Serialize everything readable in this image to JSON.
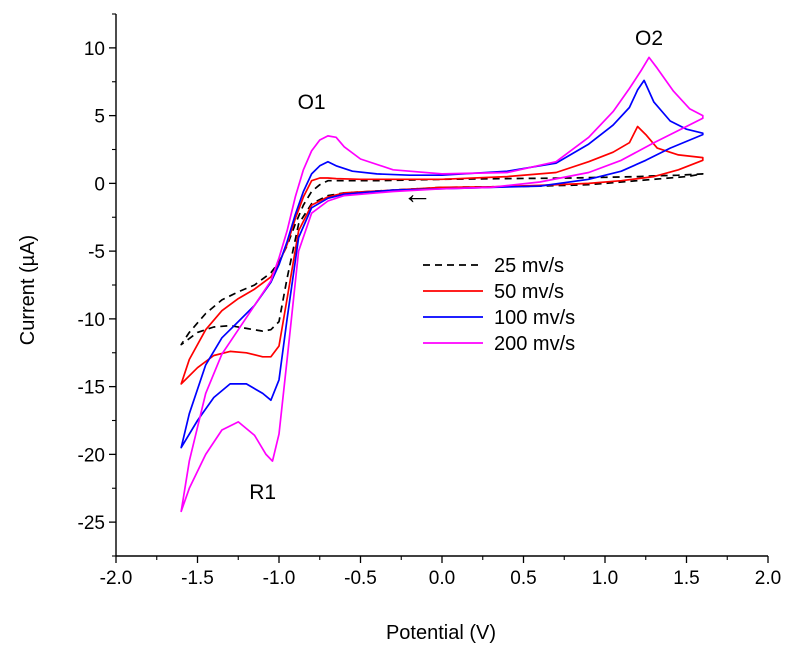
{
  "chart_data": {
    "type": "line",
    "title": "",
    "xlabel": "Potential (V)",
    "ylabel": "Current (µA)",
    "xlim": [
      -2.0,
      2.0
    ],
    "ylim": [
      -27.5,
      12.5
    ],
    "x_ticks": [
      -2.0,
      -1.5,
      -1.0,
      -0.5,
      0.0,
      0.5,
      1.0,
      1.5,
      2.0
    ],
    "x_tick_labels": [
      "-2.0",
      "-1.5",
      "-1.0",
      "-0.5",
      "0.0",
      "0.5",
      "1.0",
      "1.5",
      "2.0"
    ],
    "y_ticks": [
      -25,
      -20,
      -15,
      -10,
      -5,
      0,
      5,
      10
    ],
    "y_tick_labels": [
      "-25",
      "-20",
      "-15",
      "-10",
      "-5",
      "0",
      "5",
      "10"
    ],
    "grid": false,
    "legend_position": "center-right",
    "annotations": [
      {
        "text": "O1",
        "x": -0.8,
        "y": 5.5
      },
      {
        "text": "O2",
        "x": 1.27,
        "y": 10.2
      },
      {
        "text": "R1",
        "x": -1.1,
        "y": -23.3
      },
      {
        "text": "←",
        "x": -0.15,
        "y": -1.5
      }
    ],
    "series": [
      {
        "name": "25 mv/s",
        "color": "#000000",
        "dash": "7,5",
        "x": [
          0.0,
          -0.3,
          -0.6,
          -0.7,
          -0.8,
          -0.88,
          -0.95,
          -1.0,
          -1.05,
          -1.1,
          -1.2,
          -1.3,
          -1.4,
          -1.5,
          -1.6,
          -1.55,
          -1.45,
          -1.35,
          -1.25,
          -1.15,
          -1.05,
          -1.0,
          -0.95,
          -0.9,
          -0.85,
          -0.8,
          -0.75,
          -0.7,
          -0.6,
          -0.4,
          -0.2,
          0.0,
          0.4,
          0.8,
          1.0,
          1.2,
          1.3,
          1.45,
          1.6,
          1.5,
          1.3,
          1.1,
          0.9,
          0.6,
          0.3,
          0.0
        ],
        "y": [
          -0.3,
          -0.5,
          -0.7,
          -0.9,
          -1.5,
          -3.0,
          -7.0,
          -10.2,
          -10.8,
          -10.9,
          -10.7,
          -10.5,
          -10.6,
          -11.0,
          -11.9,
          -11.0,
          -9.6,
          -8.6,
          -8.0,
          -7.5,
          -6.6,
          -5.8,
          -4.6,
          -3.0,
          -1.6,
          -0.6,
          -0.1,
          0.2,
          0.2,
          0.2,
          0.25,
          0.3,
          0.35,
          0.4,
          0.45,
          0.5,
          0.55,
          0.6,
          0.7,
          0.5,
          0.3,
          0.1,
          -0.1,
          -0.2,
          -0.25,
          -0.3
        ]
      },
      {
        "name": "50 mv/s",
        "color": "#ff0000",
        "dash": "",
        "x": [
          0.0,
          -0.3,
          -0.6,
          -0.7,
          -0.8,
          -0.88,
          -0.95,
          -1.0,
          -1.05,
          -1.1,
          -1.2,
          -1.3,
          -1.4,
          -1.5,
          -1.6,
          -1.55,
          -1.45,
          -1.35,
          -1.25,
          -1.15,
          -1.05,
          -1.0,
          -0.95,
          -0.9,
          -0.85,
          -0.8,
          -0.75,
          -0.7,
          -0.65,
          -0.5,
          -0.2,
          0.0,
          0.4,
          0.7,
          0.9,
          1.05,
          1.15,
          1.2,
          1.25,
          1.32,
          1.45,
          1.6,
          1.6,
          1.45,
          1.3,
          1.1,
          0.9,
          0.6,
          0.3,
          0.0
        ],
        "y": [
          -0.3,
          -0.5,
          -0.7,
          -1.0,
          -1.6,
          -3.5,
          -8.5,
          -12.0,
          -12.8,
          -12.8,
          -12.5,
          -12.4,
          -12.7,
          -13.6,
          -14.8,
          -13.0,
          -10.8,
          -9.4,
          -8.5,
          -7.8,
          -6.9,
          -5.9,
          -4.5,
          -2.6,
          -1.0,
          0.2,
          0.4,
          0.4,
          0.35,
          0.3,
          0.3,
          0.3,
          0.5,
          0.8,
          1.6,
          2.3,
          3.0,
          4.2,
          3.6,
          2.6,
          2.1,
          1.9,
          1.7,
          1.0,
          0.5,
          0.2,
          0.0,
          -0.15,
          -0.25,
          -0.3
        ]
      },
      {
        "name": "100 mv/s",
        "color": "#0000ff",
        "dash": "",
        "x": [
          0.0,
          -0.3,
          -0.6,
          -0.7,
          -0.8,
          -0.88,
          -0.95,
          -1.0,
          -1.05,
          -1.1,
          -1.2,
          -1.3,
          -1.4,
          -1.5,
          -1.6,
          -1.55,
          -1.45,
          -1.35,
          -1.25,
          -1.15,
          -1.05,
          -1.0,
          -0.95,
          -0.9,
          -0.85,
          -0.8,
          -0.75,
          -0.7,
          -0.65,
          -0.55,
          -0.4,
          -0.2,
          0.0,
          0.4,
          0.7,
          0.9,
          1.05,
          1.15,
          1.2,
          1.24,
          1.3,
          1.4,
          1.5,
          1.6,
          1.6,
          1.4,
          1.25,
          1.1,
          0.9,
          0.6,
          0.3,
          0.0
        ],
        "y": [
          -0.4,
          -0.5,
          -0.8,
          -1.1,
          -1.8,
          -4.0,
          -10.0,
          -14.5,
          -16.0,
          -15.5,
          -14.8,
          -14.8,
          -15.8,
          -17.5,
          -19.5,
          -17.0,
          -13.4,
          -11.4,
          -10.2,
          -9.0,
          -7.3,
          -6.0,
          -4.3,
          -2.3,
          -0.6,
          0.7,
          1.3,
          1.6,
          1.3,
          0.9,
          0.7,
          0.6,
          0.6,
          0.9,
          1.5,
          2.9,
          4.3,
          5.6,
          6.9,
          7.6,
          6.0,
          4.6,
          4.0,
          3.7,
          3.6,
          2.6,
          1.7,
          0.9,
          0.3,
          -0.2,
          -0.3,
          -0.4
        ]
      },
      {
        "name": "200 mv/s",
        "color": "#ff00ff",
        "dash": "",
        "x": [
          0.0,
          -0.3,
          -0.6,
          -0.7,
          -0.8,
          -0.88,
          -0.95,
          -1.0,
          -1.04,
          -1.08,
          -1.15,
          -1.25,
          -1.35,
          -1.45,
          -1.55,
          -1.6,
          -1.55,
          -1.45,
          -1.35,
          -1.25,
          -1.15,
          -1.05,
          -1.0,
          -0.95,
          -0.9,
          -0.85,
          -0.8,
          -0.75,
          -0.7,
          -0.65,
          -0.6,
          -0.5,
          -0.3,
          0.0,
          0.4,
          0.7,
          0.9,
          1.05,
          1.15,
          1.22,
          1.27,
          1.32,
          1.42,
          1.52,
          1.6,
          1.6,
          1.45,
          1.3,
          1.1,
          0.9,
          0.6,
          0.3,
          0.0
        ],
        "y": [
          -0.4,
          -0.6,
          -0.9,
          -1.3,
          -2.2,
          -5.0,
          -13.0,
          -18.5,
          -20.5,
          -20.0,
          -18.6,
          -17.6,
          -18.2,
          -20.0,
          -22.5,
          -24.2,
          -20.5,
          -15.5,
          -12.6,
          -10.8,
          -9.0,
          -7.2,
          -5.5,
          -3.5,
          -1.0,
          1.0,
          2.4,
          3.2,
          3.5,
          3.4,
          2.7,
          1.8,
          1.0,
          0.7,
          0.8,
          1.6,
          3.4,
          5.3,
          7.0,
          8.3,
          9.3,
          8.5,
          6.8,
          5.5,
          5.0,
          4.8,
          3.9,
          3.0,
          1.7,
          0.8,
          0.1,
          -0.3,
          -0.4
        ]
      }
    ]
  }
}
